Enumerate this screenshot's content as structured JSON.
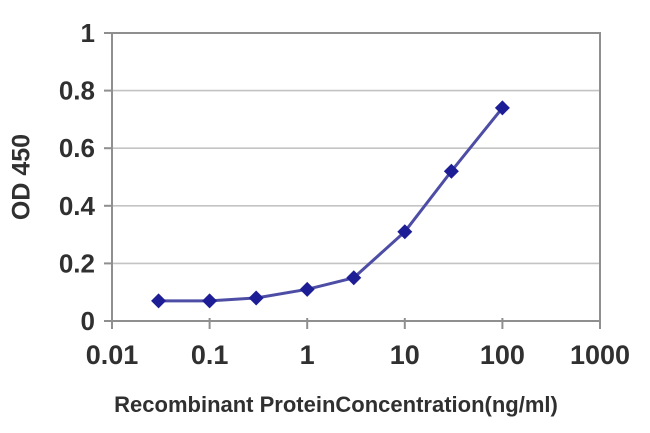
{
  "chart_data": {
    "type": "line",
    "title": "",
    "xlabel": "Recombinant ProteinConcentration(ng/ml)",
    "ylabel": "OD 450",
    "x_scale": "log",
    "xlim": [
      0.01,
      1000
    ],
    "ylim": [
      0,
      1
    ],
    "x_tick_values": [
      0.01,
      0.1,
      1,
      10,
      100,
      1000
    ],
    "x_tick_labels": [
      "0.01",
      "0.1",
      "1",
      "10",
      "100",
      "1000"
    ],
    "y_tick_values": [
      0,
      0.2,
      0.4,
      0.6,
      0.8,
      1
    ],
    "y_tick_labels": [
      "0",
      "0.2",
      "0.4",
      "0.6",
      "0.8",
      "1"
    ],
    "grid": "horizontal",
    "legend": "none",
    "series": [
      {
        "x": [
          0.03,
          0.1,
          0.3,
          1,
          3,
          10,
          30,
          100
        ],
        "y": [
          0.07,
          0.07,
          0.08,
          0.11,
          0.15,
          0.31,
          0.52,
          0.74
        ],
        "marker": "diamond"
      }
    ],
    "colors": {
      "line": "#4d4da6",
      "marker": "#1d1d96",
      "frame": "#8f8f8f",
      "gridline": "#c3c3c3",
      "tick": "#8f8f8f",
      "text": "#303030",
      "background": "#ffffff"
    }
  }
}
